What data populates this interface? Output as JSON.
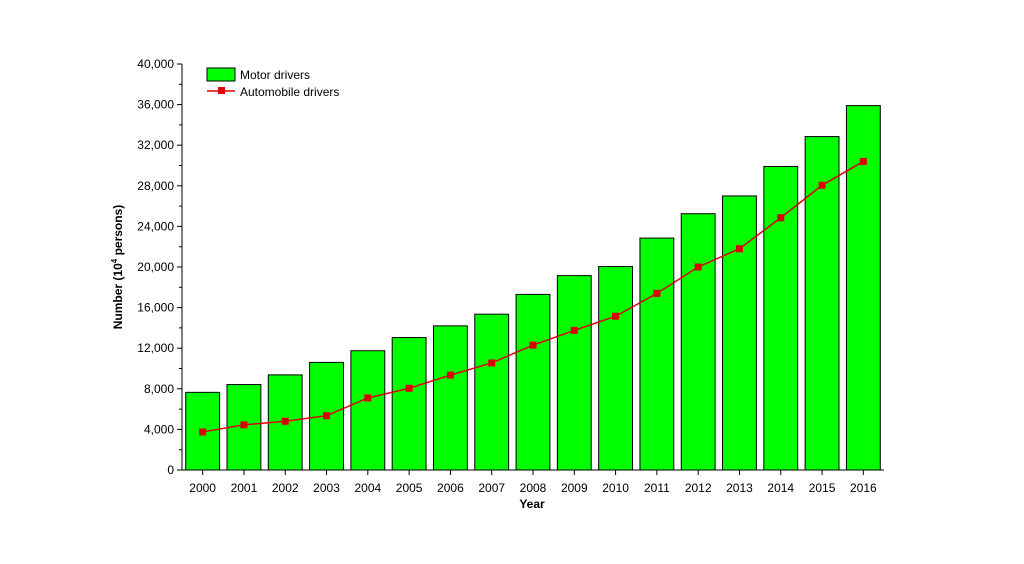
{
  "chart_data": {
    "type": "bar",
    "categories": [
      "2000",
      "2001",
      "2002",
      "2003",
      "2004",
      "2005",
      "2006",
      "2007",
      "2008",
      "2009",
      "2010",
      "2011",
      "2012",
      "2013",
      "2014",
      "2015",
      "2016"
    ],
    "series": [
      {
        "name": "Motor drivers",
        "type": "bar",
        "color": "#00ff00",
        "values": [
          7650,
          8420,
          9370,
          10600,
          11750,
          13050,
          14200,
          15350,
          17300,
          19150,
          20050,
          22850,
          25250,
          27000,
          29900,
          32850,
          35900
        ]
      },
      {
        "name": "Automobile drivers",
        "type": "line",
        "color": "#dd0000",
        "values": [
          3750,
          4450,
          4800,
          5350,
          7100,
          8050,
          9350,
          10550,
          12300,
          13750,
          15150,
          17400,
          20000,
          21800,
          24850,
          28050,
          30400
        ]
      }
    ],
    "xlabel": "Year",
    "ylabel_prefix": "Number (10",
    "ylabel_sup": "4",
    "ylabel_suffix": " persons)",
    "ylim": [
      0,
      40000
    ],
    "yticks": [
      "0",
      "4,000",
      "8,000",
      "12,000",
      "16,000",
      "20,000",
      "24,000",
      "28,000",
      "32,000",
      "36,000",
      "40,000"
    ],
    "legend_position": "top-left",
    "grid": false
  }
}
